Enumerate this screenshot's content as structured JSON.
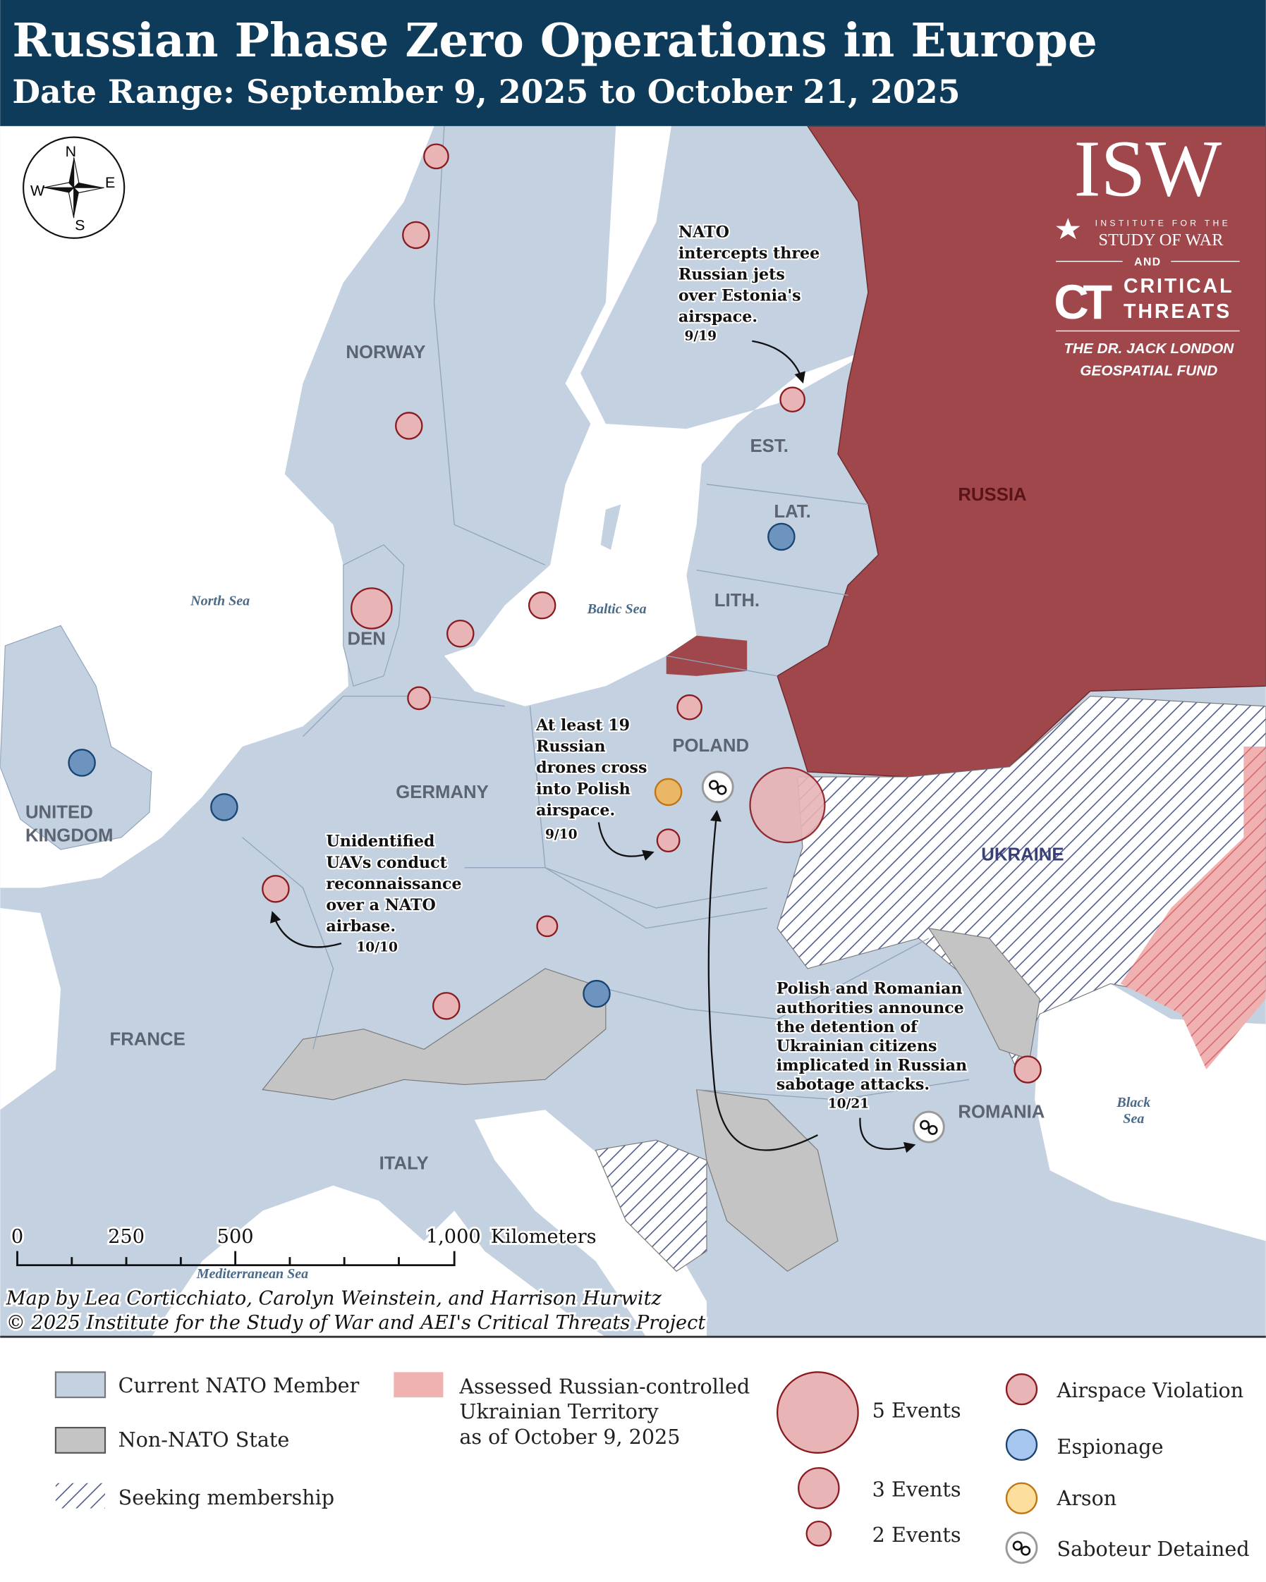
{
  "header": {
    "title": "Russian Phase Zero Operations in Europe",
    "subtitle": "Date Range: September 9, 2025 to October 21, 2025"
  },
  "colors": {
    "header_bg": "#0d3b59",
    "nato_member": "#c3d1e0",
    "non_nato": "#c4c4c4",
    "russia": "#a0474b",
    "russian_controlled": "#f0b1b1",
    "airspace_violation": "#e8b4b6",
    "espionage": "#a7c6f0",
    "arson": "#fddf9d",
    "saboteur_detained": "#ffffff"
  },
  "compass": {
    "n": "N",
    "s": "S",
    "e": "E",
    "w": "W",
    "icon": "compass-rose-icon"
  },
  "logo": {
    "isw": "ISW",
    "isw_line1": "INSTITUTE FOR THE",
    "isw_line2": "STUDY OF WAR",
    "and": "AND",
    "ct_mark": "CT",
    "ct_line1": "CRITICAL",
    "ct_line2": "THREATS",
    "fund_line1": "THE DR. JACK LONDON",
    "fund_line2": "GEOSPATIAL FUND"
  },
  "map": {
    "countries": {
      "norway": "NORWAY",
      "estonia": "EST.",
      "latvia": "LAT.",
      "lithuania": "LITH.",
      "russia": "RUSSIA",
      "denmark": "DEN",
      "poland": "POLAND",
      "germany": "GERMANY",
      "uk_line1": "UNITED",
      "uk_line2": "KINGDOM",
      "ukraine": "UKRAINE",
      "france": "FRANCE",
      "romania": "ROMANIA",
      "italy": "ITALY"
    },
    "seas": {
      "north_sea": "North Sea",
      "baltic_sea": "Baltic Sea",
      "black_sea_line1": "Black",
      "black_sea_line2": "Sea",
      "mediterranean_sea": "Mediterranean Sea"
    },
    "annotations": [
      {
        "lines": [
          "NATO",
          "intercepts three",
          "Russian jets",
          "over Estonia's",
          "airspace."
        ],
        "date": "9/19"
      },
      {
        "lines": [
          "At least 19",
          "Russian",
          "drones cross",
          "into Polish",
          "airspace."
        ],
        "date": "9/10"
      },
      {
        "lines": [
          "Unidentified",
          "UAVs conduct",
          "reconnaissance",
          "over a NATO",
          "airbase."
        ],
        "date": "10/10"
      },
      {
        "lines": [
          "Polish and Romanian",
          "authorities announce",
          "the detention of",
          "Ukrainian citizens",
          "implicated in Russian",
          "sabotage attacks."
        ],
        "date": "10/21"
      }
    ],
    "scale_bar": {
      "labels": [
        "0",
        "250",
        "500",
        "1,000"
      ],
      "unit": "Kilometers"
    },
    "credits": [
      "Map by Lea Corticchiato, Carolyn Weinstein, and Harrison Hurwitz",
      "© 2025 Institute for the Study of War and AEI's Critical Threats Project"
    ]
  },
  "legend": {
    "territory": [
      {
        "label": "Current NATO Member"
      },
      {
        "label": "Non-NATO State"
      },
      {
        "label": "Seeking membership"
      }
    ],
    "russian_controlled": [
      "Assessed Russian-controlled",
      "Ukrainian Territory",
      "as of October 9, 2025"
    ],
    "sizes": [
      {
        "label": "5 Events",
        "events": 5
      },
      {
        "label": "3 Events",
        "events": 3
      },
      {
        "label": "2 Events",
        "events": 2
      }
    ],
    "types": [
      {
        "label": "Airspace Violation"
      },
      {
        "label": "Espionage"
      },
      {
        "label": "Arson"
      },
      {
        "label": "Saboteur Detained",
        "icon": "handcuffs-icon"
      }
    ]
  }
}
